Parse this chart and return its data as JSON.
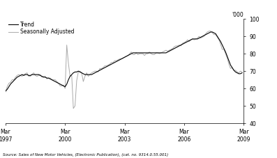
{
  "ylabel_right": "'000",
  "source_text": "Source: Sales of New Motor Vehicles, (Electronic Publication), (cat. no. 9314.0.55.001)",
  "legend_entries": [
    "Trend",
    "Seasonally Adjusted"
  ],
  "trend_color": "#000000",
  "seasonal_color": "#aaaaaa",
  "ylim": [
    40,
    100
  ],
  "yticks": [
    40,
    50,
    60,
    70,
    80,
    90,
    100
  ],
  "xtick_labels": [
    "Mar\n1997",
    "Mar\n2000",
    "Mar\n2003",
    "Mar\n2006",
    "Mar\n2009"
  ],
  "xtick_positions": [
    0,
    36,
    72,
    108,
    144
  ],
  "background_color": "#ffffff",
  "trend_lw": 0.8,
  "seasonal_lw": 0.7,
  "trend_data": [
    58.5,
    59.5,
    61.0,
    62.5,
    63.5,
    64.5,
    65.5,
    66.5,
    67.0,
    67.5,
    68.0,
    67.5,
    68.0,
    68.0,
    67.5,
    67.5,
    68.0,
    68.0,
    68.0,
    68.0,
    68.0,
    67.5,
    67.0,
    66.5,
    66.5,
    66.0,
    66.0,
    65.5,
    65.0,
    64.5,
    64.0,
    63.5,
    63.0,
    62.5,
    62.0,
    61.5,
    61.0,
    62.5,
    65.0,
    67.0,
    68.0,
    69.0,
    69.5,
    69.5,
    70.0,
    69.5,
    69.0,
    68.5,
    68.0,
    68.0,
    68.0,
    68.0,
    68.0,
    68.5,
    69.0,
    69.5,
    70.0,
    70.5,
    71.0,
    71.5,
    72.0,
    72.5,
    73.0,
    73.5,
    74.0,
    74.5,
    75.0,
    75.5,
    76.0,
    76.5,
    77.0,
    77.5,
    78.0,
    78.5,
    79.0,
    79.5,
    80.0,
    80.5,
    80.5,
    80.5,
    80.5,
    80.5,
    80.5,
    80.5,
    80.5,
    80.5,
    80.5,
    80.5,
    80.5,
    80.5,
    80.5,
    80.5,
    80.5,
    80.5,
    80.5,
    80.5,
    80.5,
    80.5,
    81.0,
    81.5,
    82.0,
    82.5,
    83.0,
    83.5,
    84.0,
    84.5,
    85.0,
    85.5,
    86.0,
    86.5,
    87.0,
    87.5,
    88.0,
    88.5,
    88.5,
    88.5,
    88.5,
    89.0,
    89.5,
    90.0,
    90.5,
    91.0,
    91.5,
    92.0,
    92.5,
    92.5,
    92.0,
    91.5,
    90.0,
    88.5,
    87.0,
    85.0,
    83.0,
    81.0,
    78.5,
    76.0,
    73.5,
    72.0,
    70.5,
    69.5,
    69.0,
    68.5,
    68.5,
    69.0
  ],
  "seasonal_data": [
    58.0,
    61.0,
    63.0,
    63.5,
    65.0,
    65.0,
    66.5,
    67.5,
    68.0,
    67.5,
    67.0,
    68.0,
    68.5,
    69.0,
    67.0,
    67.0,
    68.0,
    69.0,
    67.5,
    67.0,
    67.5,
    68.0,
    66.5,
    67.0,
    67.0,
    65.5,
    66.0,
    66.0,
    65.0,
    65.0,
    65.0,
    64.0,
    63.0,
    61.5,
    61.5,
    62.0,
    60.0,
    85.0,
    74.5,
    67.0,
    67.5,
    48.5,
    50.0,
    64.5,
    69.5,
    70.0,
    69.0,
    64.0,
    67.0,
    69.0,
    67.0,
    68.0,
    69.0,
    69.5,
    70.0,
    70.0,
    69.5,
    71.5,
    71.5,
    72.0,
    73.0,
    73.0,
    73.5,
    74.0,
    75.0,
    75.0,
    76.0,
    76.0,
    76.5,
    77.0,
    77.0,
    77.5,
    78.0,
    78.5,
    79.0,
    80.0,
    81.0,
    79.5,
    79.5,
    80.5,
    79.5,
    80.0,
    80.0,
    80.0,
    79.0,
    80.0,
    80.0,
    81.0,
    80.0,
    79.5,
    79.5,
    80.5,
    80.5,
    80.0,
    80.5,
    81.0,
    81.5,
    82.0,
    81.5,
    82.0,
    82.5,
    83.0,
    84.0,
    84.5,
    84.5,
    85.0,
    84.5,
    86.0,
    86.5,
    87.0,
    88.0,
    87.0,
    88.0,
    88.5,
    88.0,
    88.5,
    89.0,
    90.0,
    89.0,
    89.5,
    90.0,
    91.5,
    92.5,
    93.0,
    93.0,
    92.0,
    91.0,
    91.0,
    89.5,
    88.0,
    85.5,
    82.5,
    82.5,
    80.0,
    77.5,
    74.0,
    71.5,
    72.0,
    70.5,
    70.5,
    69.5,
    69.0,
    70.0,
    69.5
  ]
}
